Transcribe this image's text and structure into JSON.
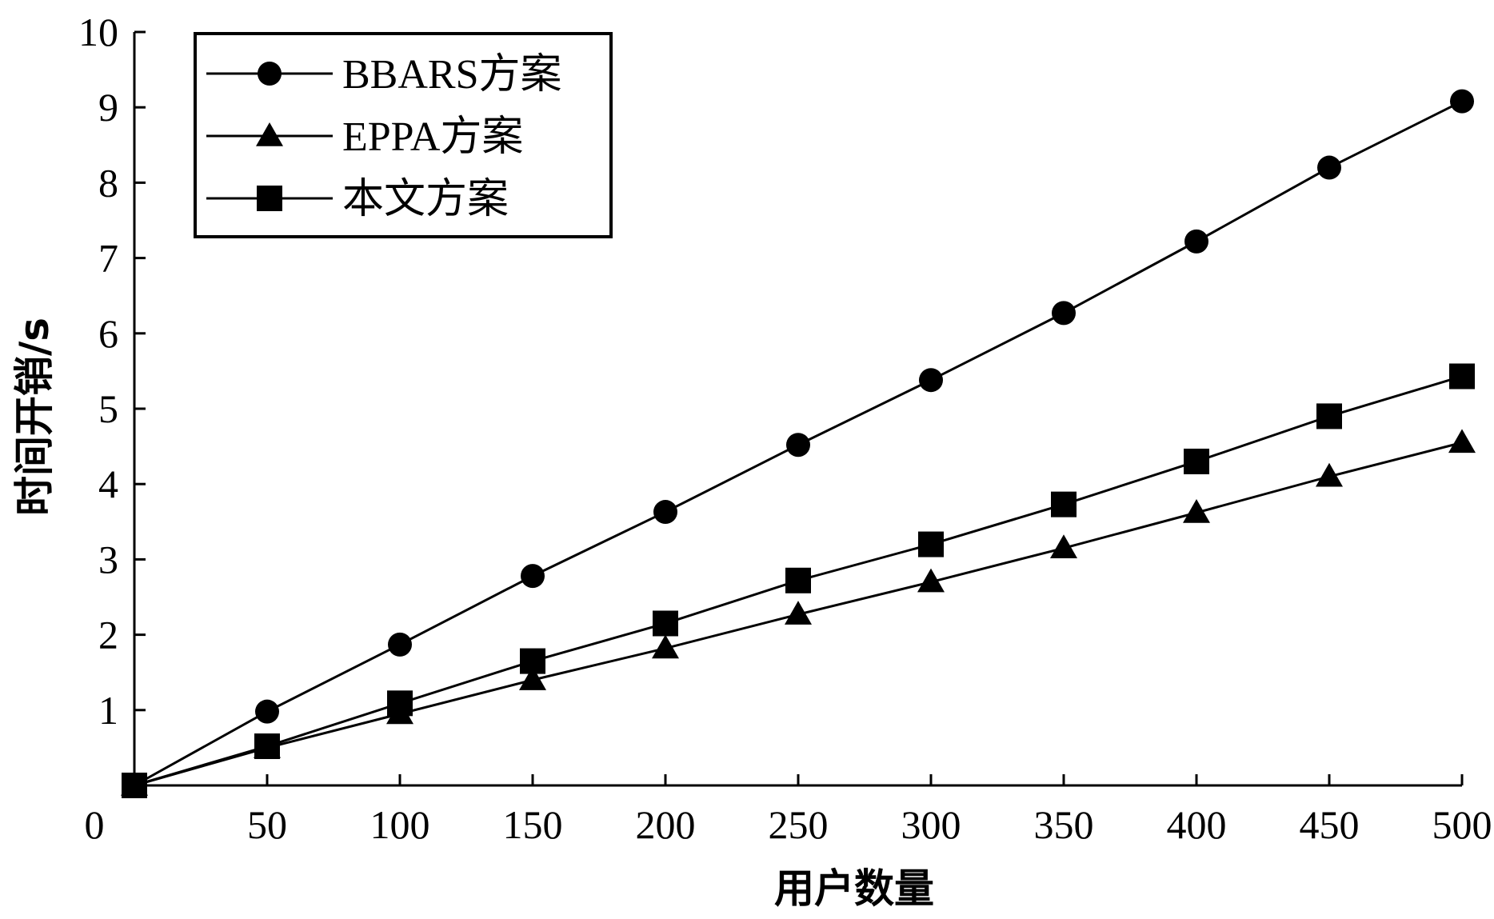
{
  "chart_data": {
    "type": "line",
    "title": "",
    "xlabel": "用户数量",
    "ylabel": "时间开销/s",
    "xlim": [
      0,
      500
    ],
    "ylim": [
      0,
      10
    ],
    "x": [
      0,
      50,
      100,
      150,
      200,
      250,
      300,
      350,
      400,
      450,
      500
    ],
    "x_ticks": [
      "0",
      "50",
      "100",
      "150",
      "200",
      "250",
      "300",
      "350",
      "400",
      "450",
      "500"
    ],
    "y_ticks": [
      "1",
      "2",
      "3",
      "4",
      "5",
      "6",
      "7",
      "8",
      "9",
      "10"
    ],
    "grid": false,
    "legend_position": "top-left",
    "series": [
      {
        "name": "BBARS方案",
        "marker": "circle",
        "color": "#000000",
        "values": [
          0,
          0.98,
          1.87,
          2.78,
          3.63,
          4.52,
          5.38,
          6.27,
          7.22,
          8.2,
          9.08
        ]
      },
      {
        "name": "EPPA方案",
        "marker": "triangle",
        "color": "#000000",
        "values": [
          0,
          0.5,
          0.95,
          1.4,
          1.82,
          2.27,
          2.7,
          3.15,
          3.62,
          4.1,
          4.55
        ]
      },
      {
        "name": "本文方案",
        "marker": "square",
        "color": "#000000",
        "values": [
          0,
          0.52,
          1.09,
          1.65,
          2.15,
          2.72,
          3.2,
          3.73,
          4.3,
          4.9,
          5.43
        ]
      }
    ]
  }
}
